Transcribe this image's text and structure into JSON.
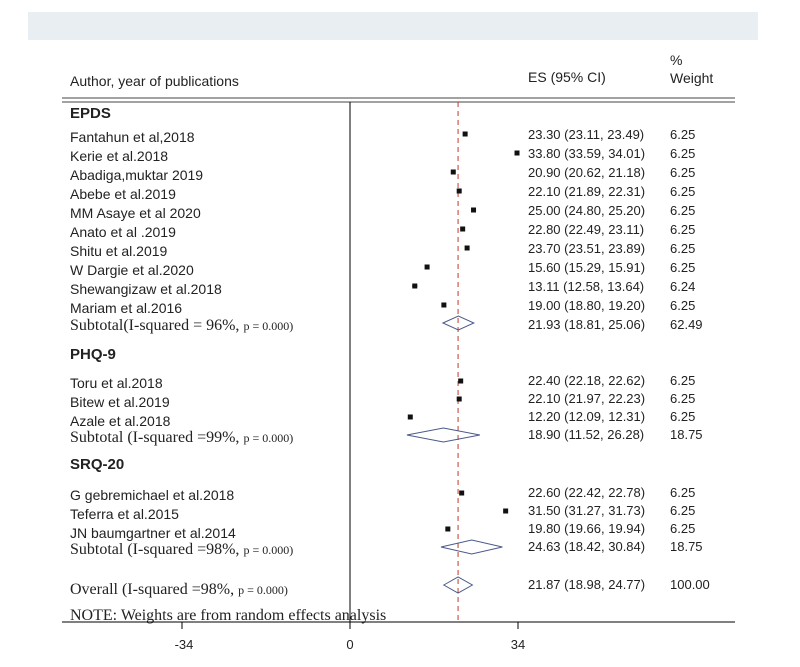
{
  "header": {
    "author_label": "Author, year of publications",
    "es_label": "ES (95% CI)",
    "weight_pct": "%",
    "weight_label": "Weight"
  },
  "groups": [
    {
      "name": "EPDS",
      "rows": [
        {
          "author": "Fantahun et al,2018",
          "es_text": "23.30 (23.11, 23.49)",
          "weight": "6.25"
        },
        {
          "author": "Kerie et al.2018",
          "es_text": "33.80 (33.59, 34.01)",
          "weight": "6.25"
        },
        {
          "author": "Abadiga,muktar 2019",
          "es_text": "20.90 (20.62, 21.18)",
          "weight": "6.25"
        },
        {
          "author": "Abebe et al.2019",
          "es_text": "22.10 (21.89, 22.31)",
          "weight": "6.25"
        },
        {
          "author": "MM Asaye  et al 2020",
          "es_text": "25.00 (24.80, 25.20)",
          "weight": "6.25"
        },
        {
          "author": "Anato et al .2019",
          "es_text": "22.80 (22.49, 23.11)",
          "weight": "6.25"
        },
        {
          "author": "Shitu et al.2019",
          "es_text": "23.70 (23.51, 23.89)",
          "weight": "6.25"
        },
        {
          "author": "W Dargie et al.2020",
          "es_text": "15.60 (15.29, 15.91)",
          "weight": "6.25"
        },
        {
          "author": "Shewangizaw et al.2018",
          "es_text": "13.11 (12.58, 13.64)",
          "weight": "6.24"
        },
        {
          "author": "Mariam et al.2016",
          "es_text": "19.00 (18.80, 19.20)",
          "weight": "6.25"
        }
      ],
      "subtotal": {
        "label": "Subtotal(I-squared = 96%, ",
        "p": "p = 0.000)",
        "es_text": "21.93 (18.81, 25.06)",
        "weight": "62.49"
      }
    },
    {
      "name": "PHQ-9",
      "rows": [
        {
          "author": "Toru et al.2018",
          "es_text": "22.40 (22.18, 22.62)",
          "weight": "6.25"
        },
        {
          "author": "Bitew et al.2019",
          "es_text": "22.10 (21.97, 22.23)",
          "weight": "6.25"
        },
        {
          "author": "Azale et al.2018",
          "es_text": "12.20 (12.09, 12.31)",
          "weight": "6.25"
        }
      ],
      "subtotal": {
        "label": "Subtotal  (I-squared =99%, ",
        "p": "p = 0.000)",
        "es_text": "18.90 (11.52, 26.28)",
        "weight": "18.75"
      }
    },
    {
      "name": "SRQ-20",
      "rows": [
        {
          "author": "G gebremichael et al.2018",
          "es_text": "22.60 (22.42, 22.78)",
          "weight": "6.25"
        },
        {
          "author": "Teferra  et al.2015",
          "es_text": "31.50 (31.27, 31.73)",
          "weight": "6.25"
        },
        {
          "author": "JN baumgartner et al.2014",
          "es_text": "19.80 (19.66, 19.94)",
          "weight": "6.25"
        }
      ],
      "subtotal": {
        "label": "Subtotal  (I-squared =98%, ",
        "p": "p = 0.000)",
        "es_text": "24.63 (18.42, 30.84)",
        "weight": "18.75"
      }
    }
  ],
  "overall": {
    "label": "Overall  (I-squared =98%, ",
    "p": "p = 0.000)",
    "es_text": "21.87 (18.98, 24.77)",
    "weight": "100.00"
  },
  "note": "NOTE: Weights are from random effects analysis",
  "axis_ticks": [
    "-34",
    "0",
    "34"
  ],
  "chart_data": {
    "type": "scatter",
    "subtype": "forest-plot",
    "x_ticks": [
      -34,
      0,
      34
    ],
    "xlim": [
      -34,
      34
    ],
    "null_line": 0,
    "overall_line": 21.87,
    "studies": [
      {
        "group": "EPDS",
        "author": "Fantahun et al,2018",
        "es": 23.3,
        "lo": 23.11,
        "hi": 23.49,
        "weight": 6.25
      },
      {
        "group": "EPDS",
        "author": "Kerie et al.2018",
        "es": 33.8,
        "lo": 33.59,
        "hi": 34.01,
        "weight": 6.25
      },
      {
        "group": "EPDS",
        "author": "Abadiga,muktar 2019",
        "es": 20.9,
        "lo": 20.62,
        "hi": 21.18,
        "weight": 6.25
      },
      {
        "group": "EPDS",
        "author": "Abebe et al.2019",
        "es": 22.1,
        "lo": 21.89,
        "hi": 22.31,
        "weight": 6.25
      },
      {
        "group": "EPDS",
        "author": "MM Asaye  et al 2020",
        "es": 25.0,
        "lo": 24.8,
        "hi": 25.2,
        "weight": 6.25
      },
      {
        "group": "EPDS",
        "author": "Anato et al .2019",
        "es": 22.8,
        "lo": 22.49,
        "hi": 23.11,
        "weight": 6.25
      },
      {
        "group": "EPDS",
        "author": "Shitu et al.2019",
        "es": 23.7,
        "lo": 23.51,
        "hi": 23.89,
        "weight": 6.25
      },
      {
        "group": "EPDS",
        "author": "W Dargie et al.2020",
        "es": 15.6,
        "lo": 15.29,
        "hi": 15.91,
        "weight": 6.25
      },
      {
        "group": "EPDS",
        "author": "Shewangizaw et al.2018",
        "es": 13.11,
        "lo": 12.58,
        "hi": 13.64,
        "weight": 6.24
      },
      {
        "group": "EPDS",
        "author": "Mariam et al.2016",
        "es": 19.0,
        "lo": 18.8,
        "hi": 19.2,
        "weight": 6.25
      },
      {
        "group": "PHQ-9",
        "author": "Toru et al.2018",
        "es": 22.4,
        "lo": 22.18,
        "hi": 22.62,
        "weight": 6.25
      },
      {
        "group": "PHQ-9",
        "author": "Bitew et al.2019",
        "es": 22.1,
        "lo": 21.97,
        "hi": 22.23,
        "weight": 6.25
      },
      {
        "group": "PHQ-9",
        "author": "Azale et al.2018",
        "es": 12.2,
        "lo": 12.09,
        "hi": 12.31,
        "weight": 6.25
      },
      {
        "group": "SRQ-20",
        "author": "G gebremichael et al.2018",
        "es": 22.6,
        "lo": 22.42,
        "hi": 22.78,
        "weight": 6.25
      },
      {
        "group": "SRQ-20",
        "author": "Teferra  et al.2015",
        "es": 31.5,
        "lo": 31.27,
        "hi": 31.73,
        "weight": 6.25
      },
      {
        "group": "SRQ-20",
        "author": "JN baumgartner et al.2014",
        "es": 19.8,
        "lo": 19.66,
        "hi": 19.94,
        "weight": 6.25
      }
    ],
    "subtotals": [
      {
        "group": "EPDS",
        "es": 21.93,
        "lo": 18.81,
        "hi": 25.06,
        "weight": 62.49
      },
      {
        "group": "PHQ-9",
        "es": 18.9,
        "lo": 11.52,
        "hi": 26.28,
        "weight": 18.75
      },
      {
        "group": "SRQ-20",
        "es": 24.63,
        "lo": 18.42,
        "hi": 30.84,
        "weight": 18.75
      }
    ],
    "overall": {
      "es": 21.87,
      "lo": 18.98,
      "hi": 24.77,
      "weight": 100.0
    }
  }
}
